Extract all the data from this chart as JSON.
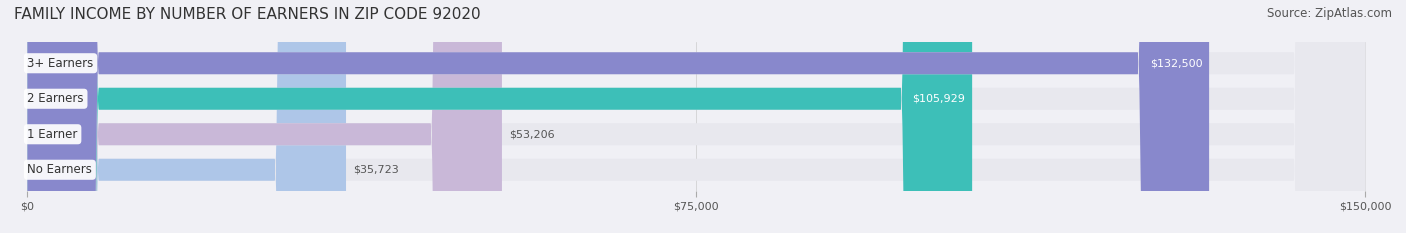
{
  "title": "FAMILY INCOME BY NUMBER OF EARNERS IN ZIP CODE 92020",
  "source": "Source: ZipAtlas.com",
  "categories": [
    "No Earners",
    "1 Earner",
    "2 Earners",
    "3+ Earners"
  ],
  "values": [
    35723,
    53206,
    105929,
    132500
  ],
  "bar_colors": [
    "#aec6e8",
    "#c9b8d8",
    "#3dbfb8",
    "#8888cc"
  ],
  "bar_label_colors": [
    "#555555",
    "#555555",
    "#ffffff",
    "#ffffff"
  ],
  "x_max": 150000,
  "x_ticks": [
    0,
    75000,
    150000
  ],
  "x_tick_labels": [
    "$0",
    "$75,000",
    "$150,000"
  ],
  "value_labels": [
    "$35,723",
    "$53,206",
    "$105,929",
    "$132,500"
  ],
  "background_color": "#f0f0f5",
  "bar_background_color": "#e8e8ee",
  "title_fontsize": 11,
  "source_fontsize": 8.5
}
